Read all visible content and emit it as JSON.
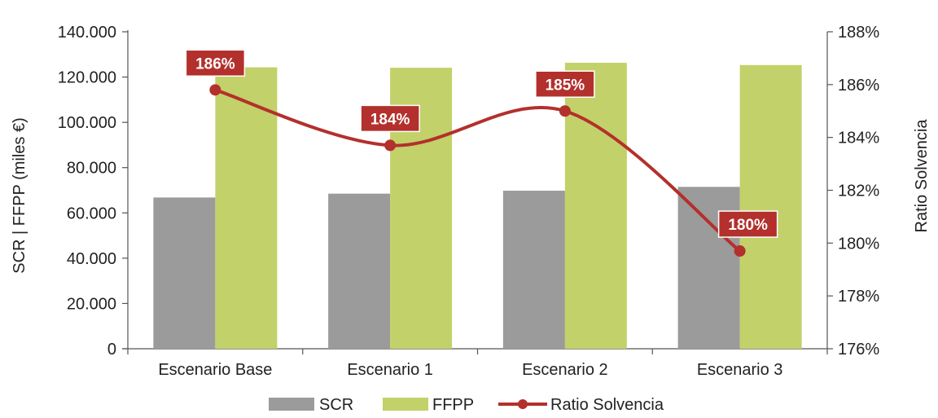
{
  "chart_data": {
    "type": "bar",
    "categories": [
      "Escenario Base",
      "Escenario 1",
      "Escenario 2",
      "Escenario 3"
    ],
    "series": [
      {
        "name": "SCR",
        "kind": "bar",
        "axis": "left",
        "color": "#9b9b9b",
        "values": [
          66800,
          68500,
          69800,
          71500
        ]
      },
      {
        "name": "FFPP",
        "kind": "bar",
        "axis": "left",
        "color": "#c2d16a",
        "values": [
          124300,
          124100,
          126300,
          125300
        ]
      },
      {
        "name": "Ratio Solvencia",
        "kind": "line",
        "axis": "right",
        "color": "#b3302c",
        "values": [
          185.8,
          183.7,
          185.0,
          179.7
        ],
        "data_labels": [
          "186%",
          "184%",
          "185%",
          "180%"
        ]
      }
    ],
    "ylabel": "SCR | FFPP (miles €)",
    "y2label": "Ratio Solvencia",
    "ylim": [
      0,
      140000
    ],
    "y2lim": [
      176,
      188
    ],
    "yticks": [
      0,
      20000,
      40000,
      60000,
      80000,
      100000,
      120000,
      140000
    ],
    "ytick_labels": [
      "0",
      "20.000",
      "40.000",
      "60.000",
      "80.000",
      "100.000",
      "120.000",
      "140.000"
    ],
    "y2ticks": [
      176,
      178,
      180,
      182,
      184,
      186,
      188
    ],
    "y2tick_labels": [
      "176%",
      "178%",
      "180%",
      "182%",
      "184%",
      "186%",
      "188%"
    ],
    "legend": {
      "position": "bottom",
      "entries": [
        "SCR",
        "FFPP",
        "Ratio Solvencia"
      ]
    },
    "grid": false
  }
}
